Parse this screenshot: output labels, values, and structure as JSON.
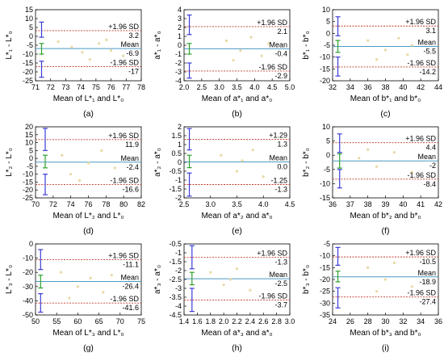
{
  "figure": {
    "panel_labels": [
      "(a)",
      "(b)",
      "(c)",
      "(d)",
      "(e)",
      "(f)",
      "(g)",
      "(h)",
      "(i)"
    ],
    "colors": {
      "upper_loa": "#c0392b",
      "lower_loa": "#c0392b",
      "mean": "#4a9ac4",
      "points": "#e8d9a4",
      "ci_upper": "#3b3bd6",
      "ci_mean": "#2ca02c",
      "ci_lower": "#3b3bd6",
      "axis": "#000000"
    }
  },
  "chart_data": [
    {
      "type": "scatter",
      "panel": "(a)",
      "xlabel": "Mean of L*₁ and L*₀",
      "ylabel": "L*₁ - L*₀",
      "xlim": [
        71,
        78
      ],
      "ylim": [
        -25,
        15
      ],
      "xticks": [
        71,
        72,
        73,
        74,
        75,
        76,
        77,
        78
      ],
      "yticks": [
        -25,
        -20,
        -15,
        -10,
        -5,
        0,
        5,
        10,
        15
      ],
      "upper_loa_label": "+1.96 SD",
      "upper_loa": 3.2,
      "mean_label": "Mean",
      "mean": -6.9,
      "lower_loa_label": "-1.96 SD",
      "lower_loa": -17.0,
      "points": [
        [
          72.5,
          -3
        ],
        [
          73.4,
          -6
        ],
        [
          74.1,
          -9
        ],
        [
          75.2,
          -4
        ],
        [
          76,
          -8
        ],
        [
          76.8,
          -11
        ],
        [
          74.6,
          -13
        ],
        [
          75.7,
          -2
        ]
      ],
      "ci": {
        "x": 71.4,
        "upper": [
          -0.5,
          8
        ],
        "mean": [
          -10,
          -4
        ],
        "lower": [
          -23,
          -14
        ]
      }
    },
    {
      "type": "scatter",
      "panel": "(b)",
      "xlabel": "Mean of a*₁ and a*₀",
      "ylabel": "a*₁ - a*₀",
      "xlim": [
        2,
        5
      ],
      "ylim": [
        -4,
        4
      ],
      "xticks": [
        2.0,
        2.5,
        3.0,
        3.5,
        4.0,
        4.5,
        5.0
      ],
      "yticks": [
        -4,
        -3,
        -2,
        -1,
        0,
        1,
        2,
        3,
        4
      ],
      "upper_loa_label": "+1.96 SD",
      "upper_loa": 2.1,
      "mean_label": "Mean",
      "mean": -0.4,
      "lower_loa_label": "-1.96 SD",
      "lower_loa": -2.9,
      "points": [
        [
          3.2,
          0.5
        ],
        [
          3.6,
          -0.6
        ],
        [
          3.9,
          0.9
        ],
        [
          4.2,
          -1.2
        ],
        [
          3.4,
          -1.7
        ],
        [
          4.4,
          0.2
        ]
      ],
      "ci": {
        "x": 2.15,
        "upper": [
          1.2,
          3.4
        ],
        "mean": [
          -1.0,
          0.2
        ],
        "lower": [
          -3.7,
          -2.0
        ]
      }
    },
    {
      "type": "scatter",
      "panel": "(c)",
      "xlabel": "Mean of b*₁ and b*₀",
      "ylabel": "b*₁ - b*₀",
      "xlim": [
        32,
        44
      ],
      "ylim": [
        -20,
        10
      ],
      "xticks": [
        32,
        34,
        36,
        38,
        40,
        42,
        44
      ],
      "yticks": [
        -20,
        -15,
        -10,
        -5,
        0,
        5,
        10
      ],
      "upper_loa_label": "+1.96 SD",
      "upper_loa": 3.1,
      "mean_label": "Mean",
      "mean": -5.5,
      "lower_loa_label": "-1.96 SD",
      "lower_loa": -14.2,
      "points": [
        [
          36,
          -3
        ],
        [
          38,
          -7
        ],
        [
          39.5,
          -2
        ],
        [
          40.5,
          -9
        ],
        [
          37,
          -11
        ],
        [
          41,
          -5
        ]
      ],
      "ci": {
        "x": 32.6,
        "upper": [
          -1,
          7
        ],
        "mean": [
          -8,
          -3
        ],
        "lower": [
          -18,
          -10
        ]
      }
    },
    {
      "type": "scatter",
      "panel": "(d)",
      "xlabel": "Mean of L*₂ and L*₀",
      "ylabel": "L*₂ - L*₀",
      "xlim": [
        70,
        82
      ],
      "ylim": [
        -25,
        20
      ],
      "xticks": [
        70,
        72,
        74,
        76,
        78,
        80,
        82
      ],
      "yticks": [
        -25,
        -20,
        -15,
        -10,
        -5,
        0,
        5,
        10,
        15,
        20
      ],
      "upper_loa_label": "+1.96 SD",
      "upper_loa": 11.9,
      "mean_label": "Mean",
      "mean": -2.4,
      "lower_loa_label": "-1.96 SD",
      "lower_loa": -16.6,
      "points": [
        [
          73,
          2
        ],
        [
          74,
          -10
        ],
        [
          76,
          -3
        ],
        [
          77.5,
          5
        ],
        [
          79,
          -6
        ],
        [
          75,
          -14
        ]
      ],
      "ci": {
        "x": 71.1,
        "upper": [
          5,
          19
        ],
        "mean": [
          -6,
          2
        ],
        "lower": [
          -23,
          -10
        ]
      }
    },
    {
      "type": "scatter",
      "panel": "(e)",
      "xlabel": "Mean of a*₂ and a*₀",
      "ylabel": "a*₂ - a*₀",
      "xlim": [
        2.5,
        4.5
      ],
      "ylim": [
        -2,
        2
      ],
      "xticks": [
        2.5,
        3.0,
        3.5,
        4.0,
        4.5
      ],
      "yticks": [
        -2.0,
        -1.5,
        -1.0,
        -0.5,
        0.0,
        0.5,
        1.0,
        1.5,
        2.0
      ],
      "upper_loa_label": "+1.29",
      "upper_loa": 1.29,
      "mean_label": "Mean",
      "mean": 0.02,
      "lower_loa_label": "-1.25",
      "lower_loa": -1.25,
      "points": [
        [
          3.2,
          0.4
        ],
        [
          3.5,
          -0.5
        ],
        [
          3.8,
          0.7
        ],
        [
          4.0,
          -0.8
        ],
        [
          3.6,
          0.1
        ]
      ],
      "ci": {
        "x": 2.6,
        "upper": [
          0.7,
          1.9
        ],
        "mean": [
          -0.3,
          0.4
        ],
        "lower": [
          -1.9,
          -0.6
        ]
      }
    },
    {
      "type": "scatter",
      "panel": "(f)",
      "xlabel": "Mean of b*₂ and b*₀",
      "ylabel": "b*₂ - b*₀",
      "xlim": [
        36,
        42
      ],
      "ylim": [
        -15,
        10
      ],
      "xticks": [
        36,
        37,
        38,
        39,
        40,
        41,
        42
      ],
      "yticks": [
        -15,
        -10,
        -5,
        0,
        5,
        10
      ],
      "upper_loa_label": "+1.96 SD",
      "upper_loa": 4.4,
      "mean_label": "Mean",
      "mean": -2.0,
      "lower_loa_label": "-1.96 SD",
      "lower_loa": -8.4,
      "points": [
        [
          37.5,
          -1
        ],
        [
          38.5,
          -4
        ],
        [
          39.5,
          1
        ],
        [
          40.5,
          -6
        ],
        [
          38,
          2
        ]
      ],
      "ci": {
        "x": 36.4,
        "upper": [
          1,
          7.5
        ],
        "mean": [
          -4.5,
          0.5
        ],
        "lower": [
          -11.5,
          -5
        ]
      }
    },
    {
      "type": "scatter",
      "panel": "(g)",
      "xlabel": "Mean of L*₃ and L*₀",
      "ylabel": "L*₃ - L*₀",
      "xlim": [
        50,
        75
      ],
      "ylim": [
        -50,
        0
      ],
      "xticks": [
        50,
        55,
        60,
        65,
        70,
        75
      ],
      "yticks": [
        -50,
        -40,
        -30,
        -20,
        -10,
        0
      ],
      "upper_loa_label": "+1.96 SD",
      "upper_loa": -11.1,
      "mean_label": "Mean",
      "mean": -26.4,
      "lower_loa_label": "-1.96 SD",
      "lower_loa": -41.6,
      "points": [
        [
          56,
          -20
        ],
        [
          60,
          -30
        ],
        [
          63,
          -24
        ],
        [
          66,
          -34
        ],
        [
          58,
          -38
        ],
        [
          68,
          -22
        ]
      ],
      "ci": {
        "x": 51.2,
        "upper": [
          -18,
          -4
        ],
        "mean": [
          -31,
          -22
        ],
        "lower": [
          -48,
          -35
        ]
      }
    },
    {
      "type": "scatter",
      "panel": "(h)",
      "xlabel": "Mean of a*₃ and a*₀",
      "ylabel": "a*₃ - a*₀",
      "xlim": [
        1.4,
        3.0
      ],
      "ylim": [
        -4.5,
        -0.5
      ],
      "xticks": [
        1.4,
        1.6,
        1.8,
        2.0,
        2.2,
        2.4,
        2.6,
        2.8,
        3.0
      ],
      "yticks": [
        -4.5,
        -4.0,
        -3.5,
        -3.0,
        -2.5,
        -2.0,
        -1.5,
        -1.0,
        -0.5
      ],
      "upper_loa_label": "+1.96 SD",
      "upper_loa": -1.26,
      "mean_label": "Mean",
      "mean": -2.46,
      "lower_loa_label": "-1.96 SD",
      "lower_loa": -3.66,
      "points": [
        [
          1.8,
          -2.1
        ],
        [
          2.0,
          -2.8
        ],
        [
          2.2,
          -1.9
        ],
        [
          2.4,
          -3.1
        ],
        [
          2.1,
          -2.5
        ]
      ],
      "ci": {
        "x": 1.52,
        "upper": [
          -1.9,
          -0.6
        ],
        "mean": [
          -2.8,
          -2.1
        ],
        "lower": [
          -4.3,
          -3.0
        ]
      }
    },
    {
      "type": "scatter",
      "panel": "(i)",
      "xlabel": "Mean of b*₃ and b*₀",
      "ylabel": "b*₃ - b*₀",
      "xlim": [
        24,
        36
      ],
      "ylim": [
        -35,
        -5
      ],
      "xticks": [
        24,
        26,
        28,
        30,
        32,
        34,
        36
      ],
      "yticks": [
        -35,
        -30,
        -25,
        -20,
        -15,
        -10,
        -5
      ],
      "upper_loa_label": "+1.96 SD",
      "upper_loa": -10.5,
      "mean_label": "Mean",
      "mean": -18.9,
      "lower_loa_label": "-1.96 SD",
      "lower_loa": -27.4,
      "points": [
        [
          28,
          -15
        ],
        [
          30,
          -20
        ],
        [
          31,
          -13
        ],
        [
          33,
          -23
        ],
        [
          29,
          -25
        ]
      ],
      "ci": {
        "x": 24.6,
        "upper": [
          -14,
          -6.5
        ],
        "mean": [
          -21,
          -16.5
        ],
        "lower": [
          -32,
          -23.5
        ]
      }
    }
  ]
}
